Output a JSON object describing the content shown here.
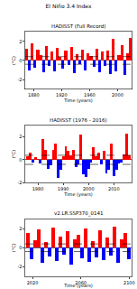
{
  "title": "El Niño 3.4 Index",
  "chart_data": [
    {
      "type": "bar",
      "title": "HADISST (Full Record)",
      "x_label": "Time (years)",
      "y_label": "(°C)",
      "x": [
        1870,
        1874,
        1878,
        1882,
        1886,
        1890,
        1894,
        1898,
        1902,
        1906,
        1910,
        1914,
        1918,
        1922,
        1926,
        1930,
        1934,
        1938,
        1942,
        1946,
        1950,
        1954,
        1958,
        1962,
        1966,
        1970,
        1974,
        1978,
        1982,
        1986,
        1990,
        1994,
        1998,
        2002,
        2006,
        2010,
        2014,
        2018
      ],
      "values": [
        1.2,
        -1.0,
        1.8,
        -0.8,
        1.1,
        0.6,
        -1.2,
        1.5,
        -0.6,
        0.9,
        -1.1,
        1.3,
        0.4,
        -0.9,
        1.0,
        -0.5,
        1.4,
        -1.3,
        0.7,
        -0.4,
        1.1,
        -1.0,
        0.8,
        0.5,
        -0.7,
        1.2,
        -1.2,
        0.9,
        -0.6,
        1.0,
        -1.4,
        2.3,
        -1.1,
        0.6,
        1.6,
        -1.5,
        0.8,
        2.4
      ],
      "colors": [
        "red",
        "blue",
        "red",
        "blue",
        "red",
        "red",
        "blue",
        "red",
        "blue",
        "red",
        "blue",
        "red",
        "red",
        "blue",
        "red",
        "blue",
        "red",
        "blue",
        "red",
        "blue",
        "red",
        "blue",
        "red",
        "red",
        "blue",
        "red",
        "blue",
        "red",
        "blue",
        "red",
        "blue",
        "red",
        "blue",
        "red",
        "red",
        "blue",
        "red",
        "red"
      ],
      "hlines": [
        0.4,
        -0.4
      ],
      "xlim": [
        1868,
        2020
      ],
      "xticks": [
        1880,
        1920,
        1960,
        2000
      ],
      "ylim": [
        -3,
        3
      ],
      "yticks": [
        -2,
        0,
        2
      ]
    },
    {
      "type": "bar",
      "title": "HADISST (1976 - 2016)",
      "x_label": "Time (years)",
      "y_label": "(°C)",
      "x": [
        1976,
        1977,
        1978,
        1979,
        1980,
        1981,
        1982,
        1983,
        1984,
        1985,
        1986,
        1987,
        1988,
        1989,
        1990,
        1991,
        1992,
        1993,
        1994,
        1995,
        1996,
        1997,
        1998,
        1999,
        2000,
        2001,
        2002,
        2003,
        2004,
        2005,
        2006,
        2007,
        2008,
        2009,
        2010,
        2011,
        2012,
        2013,
        2014,
        2015,
        2016
      ],
      "values": [
        0.3,
        0.6,
        -0.2,
        0.2,
        0.1,
        -0.3,
        1.8,
        0.9,
        -0.8,
        -0.5,
        0.9,
        1.4,
        -1.6,
        -0.9,
        0.3,
        1.2,
        0.8,
        0.4,
        0.9,
        -0.6,
        -0.4,
        2.2,
        -1.3,
        -1.5,
        -0.8,
        -0.2,
        1.1,
        0.3,
        0.6,
        -0.4,
        0.8,
        -1.2,
        -0.9,
        1.4,
        -1.4,
        -0.9,
        -0.3,
        -0.2,
        0.5,
        2.3,
        0.4
      ],
      "colors": [
        "red",
        "red",
        "blue",
        "red",
        "red",
        "blue",
        "red",
        "red",
        "blue",
        "blue",
        "red",
        "red",
        "blue",
        "blue",
        "red",
        "red",
        "red",
        "red",
        "red",
        "blue",
        "blue",
        "red",
        "blue",
        "blue",
        "blue",
        "blue",
        "red",
        "red",
        "red",
        "blue",
        "red",
        "blue",
        "blue",
        "red",
        "blue",
        "blue",
        "blue",
        "blue",
        "red",
        "red",
        "red"
      ],
      "hlines": [
        0.4,
        -0.4
      ],
      "xlim": [
        1975,
        2017
      ],
      "xticks": [
        1980,
        1990,
        2000,
        2010
      ],
      "ylim": [
        -2,
        3
      ],
      "yticks": [
        -2,
        0,
        2
      ]
    },
    {
      "type": "bar",
      "title": "v2.LR.SSP370_0141",
      "x_label": "Time (years)",
      "y_label": "(°C)",
      "x": [
        2016,
        2019,
        2022,
        2025,
        2028,
        2031,
        2034,
        2037,
        2040,
        2043,
        2046,
        2049,
        2052,
        2055,
        2058,
        2061,
        2064,
        2067,
        2070,
        2073,
        2076,
        2079,
        2082,
        2085,
        2088,
        2091,
        2094,
        2097,
        2100
      ],
      "values": [
        1.5,
        -1.2,
        0.8,
        1.9,
        -1.6,
        0.6,
        -0.9,
        2.1,
        -1.4,
        1.2,
        -0.7,
        1.7,
        -1.8,
        0.9,
        1.4,
        -1.1,
        2.0,
        -1.5,
        0.7,
        -1.0,
        1.8,
        -1.3,
        1.1,
        -0.8,
        2.2,
        -1.6,
        0.9,
        1.5,
        -1.2
      ],
      "colors": [
        "red",
        "blue",
        "red",
        "red",
        "blue",
        "red",
        "blue",
        "red",
        "blue",
        "red",
        "blue",
        "red",
        "blue",
        "red",
        "red",
        "blue",
        "red",
        "blue",
        "red",
        "blue",
        "red",
        "blue",
        "red",
        "blue",
        "red",
        "blue",
        "red",
        "red",
        "blue"
      ],
      "hlines": [
        0.4,
        -0.4
      ],
      "xlim": [
        2014,
        2102
      ],
      "xticks": [
        2020,
        2060,
        2100
      ],
      "ylim": [
        -3,
        3
      ],
      "yticks": [
        -2,
        0,
        2
      ]
    }
  ]
}
